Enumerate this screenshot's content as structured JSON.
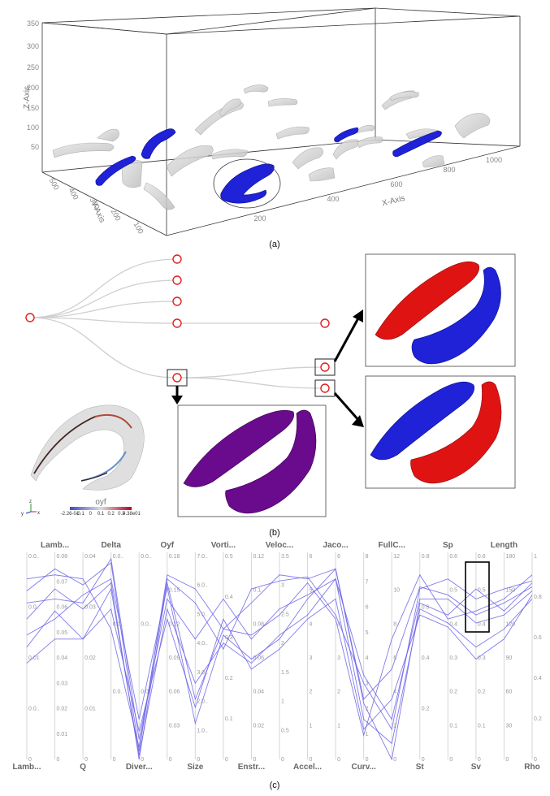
{
  "panel_a": {
    "caption": "(a)",
    "z_axis": {
      "label": "Z-Axis",
      "ticks": [
        "350",
        "300",
        "250",
        "200",
        "150",
        "100",
        "50"
      ]
    },
    "x_axis": {
      "label": "X-Axis",
      "ticks": [
        "200",
        "400",
        "600",
        "800",
        "1000"
      ]
    },
    "y_axis": {
      "label": "Y-Axis",
      "ticks": [
        "500",
        "400",
        "300",
        "200",
        "100"
      ]
    }
  },
  "panel_b": {
    "caption": "(b)",
    "colorbar": {
      "label": "oyf",
      "ticks": [
        "-2.26-01",
        "-0.1",
        "0",
        "0.1",
        "0.2",
        "0.3",
        "4.38e01"
      ]
    },
    "orientation_axes": [
      "y",
      "z",
      "x"
    ]
  },
  "panel_c": {
    "caption": "(c)",
    "top_labels": [
      "Lamb...",
      "Delta",
      "Oyf",
      "Vorti...",
      "Veloc...",
      "Jaco...",
      "FullC...",
      "Sp",
      "Length"
    ],
    "bottom_labels": [
      "Lamb...",
      "Q",
      "Diver...",
      "Size",
      "Enstr...",
      "Accel...",
      "Curv...",
      "St",
      "Sv",
      "Rho"
    ],
    "axis_ticks": [
      [
        "0.0..",
        "0.0..",
        "0.01",
        "0.0..",
        "0"
      ],
      [
        "0.08",
        "0.07",
        "0.06",
        "0.05",
        "0.04",
        "0.03",
        "0.02",
        "0.01",
        "0"
      ],
      [
        "0.04",
        "0.03",
        "0.02",
        "0.01",
        "0"
      ],
      [
        "0.0..",
        "0.0..",
        "0.0..",
        "0"
      ],
      [
        "0.0..",
        "0.0..",
        "0.0..",
        "0"
      ],
      [
        "0.18",
        "0.15",
        "0.12",
        "0.09",
        "0.06",
        "0.03",
        "0"
      ],
      [
        "7.0..",
        "6.0..",
        "5.0..",
        "4.0..",
        "3.0..",
        "2.0..",
        "1.0..",
        "0"
      ],
      [
        "0.5",
        "0.4",
        "0.3",
        "0.2",
        "0.1",
        "0"
      ],
      [
        "0.12",
        "0.1",
        "0.08",
        "0.06",
        "0.04",
        "0.02",
        "0"
      ],
      [
        "3.5",
        "3",
        "2.5",
        "2",
        "1.5",
        "1",
        "0.5",
        "0"
      ],
      [
        "6",
        "5",
        "4",
        "3",
        "2",
        "1",
        "0"
      ],
      [
        "6",
        "5",
        "4",
        "3",
        "2",
        "1",
        "0"
      ],
      [
        "8",
        "7",
        "6",
        "5",
        "4",
        "3",
        "2",
        "1",
        "0"
      ],
      [
        "12",
        "10",
        "8",
        "6",
        "4",
        "2",
        "0"
      ],
      [
        "0.8",
        "0.6",
        "0.4",
        "0.2",
        "0"
      ],
      [
        "0.6",
        "0.5",
        "0.4",
        "0.3",
        "0.2",
        "0.1",
        "0"
      ],
      [
        "0.6",
        "0.5",
        "0.4",
        "0.3",
        "0.2",
        "0.1",
        "0"
      ],
      [
        "180",
        "150",
        "120",
        "90",
        "60",
        "30",
        "0"
      ],
      [
        "1",
        "0.8",
        "0.6",
        "0.4",
        "0.2",
        "0"
      ]
    ],
    "line_color": "#6b63e6"
  },
  "colors": {
    "highlight_blue": "#1f22d6",
    "highlight_red": "#e01313",
    "merged_purple": "#6a0a8c",
    "node_red": "#e0201f",
    "ghost_gray": "#c9c9c9"
  }
}
